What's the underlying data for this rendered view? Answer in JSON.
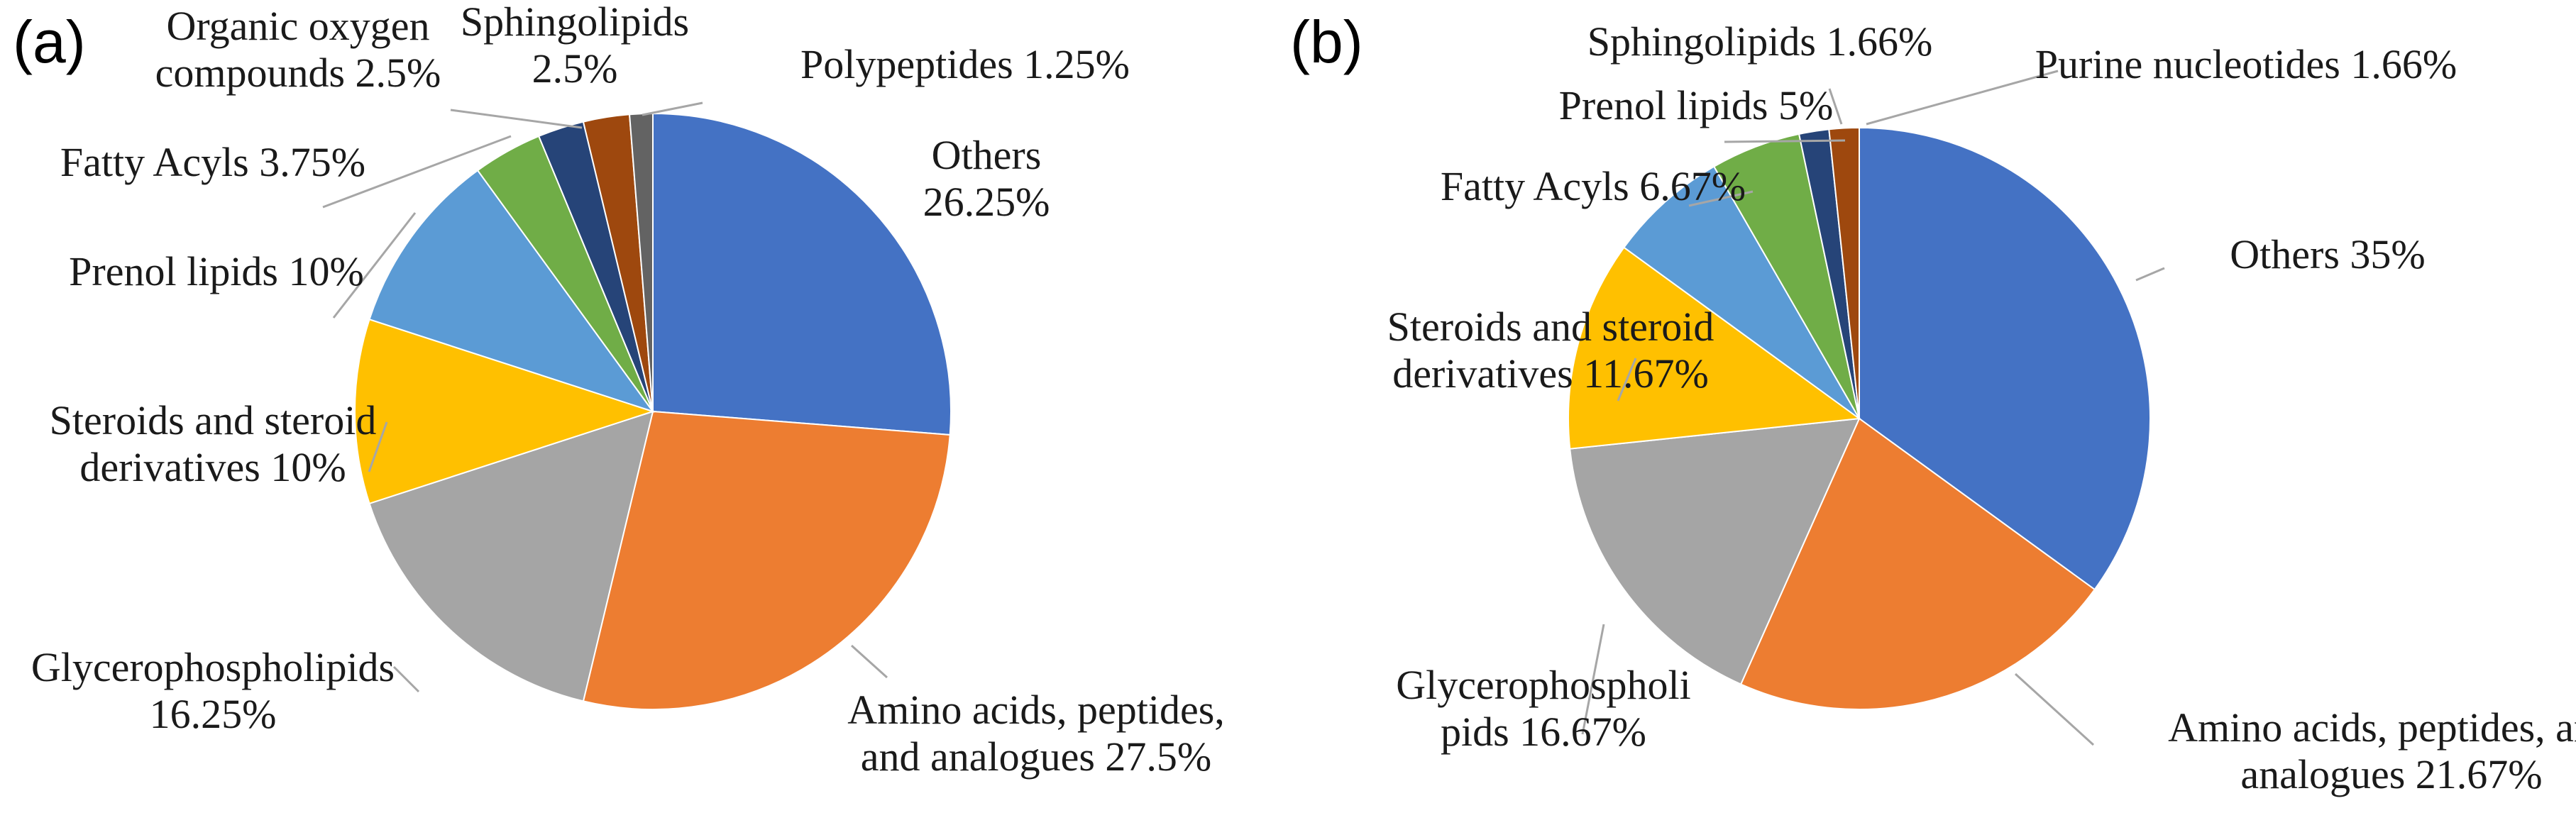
{
  "chart_data": [
    {
      "type": "pie",
      "panel_label": "(a)",
      "start_angle_deg": 0,
      "direction": "clockwise",
      "slices": [
        {
          "name": "Others",
          "value": 26.25,
          "label_lines": [
            "Others",
            "26.25%"
          ],
          "color": "#4472c4"
        },
        {
          "name": "Amino acids, peptides, and analogues",
          "value": 27.5,
          "label_lines": [
            "Amino acids, peptides,",
            "and analogues 27.5%"
          ],
          "color": "#ed7d31"
        },
        {
          "name": "Glycerophospholipids",
          "value": 16.25,
          "label_lines": [
            "Glycerophospholipids",
            "16.25%"
          ],
          "color": "#a5a5a5"
        },
        {
          "name": "Steroids and steroid derivatives",
          "value": 10,
          "label_lines": [
            "Steroids and steroid",
            "derivatives 10%"
          ],
          "color": "#ffc000"
        },
        {
          "name": "Prenol lipids",
          "value": 10,
          "label_lines": [
            "Prenol lipids 10%"
          ],
          "color": "#5b9bd5"
        },
        {
          "name": "Fatty Acyls",
          "value": 3.75,
          "label_lines": [
            "Fatty Acyls 3.75%"
          ],
          "color": "#70ad47"
        },
        {
          "name": "Organic oxygen compounds",
          "value": 2.5,
          "label_lines": [
            "Organic oxygen",
            "compounds 2.5%"
          ],
          "color": "#264478"
        },
        {
          "name": "Sphingolipids",
          "value": 2.5,
          "label_lines": [
            "Sphingolipids",
            "2.5%"
          ],
          "color": "#9e480e"
        },
        {
          "name": "Polypeptides",
          "value": 1.25,
          "label_lines": [
            "Polypeptides 1.25%"
          ],
          "color": "#636363"
        }
      ]
    },
    {
      "type": "pie",
      "panel_label": "(b)",
      "start_angle_deg": 0,
      "direction": "clockwise",
      "slices": [
        {
          "name": "Others",
          "value": 35,
          "label_lines": [
            "Others 35%"
          ],
          "color": "#4472c4"
        },
        {
          "name": "Amino acids, peptides, and analogues",
          "value": 21.67,
          "label_lines": [
            "Amino acids, peptides, and",
            "analogues 21.67%"
          ],
          "color": "#ed7d31"
        },
        {
          "name": "Glycerophospholipids",
          "value": 16.67,
          "label_lines": [
            "Glycerophospholi",
            "pids 16.67%"
          ],
          "color": "#a5a5a5"
        },
        {
          "name": "Steroids and steroid derivatives",
          "value": 11.67,
          "label_lines": [
            "Steroids and steroid",
            "derivatives 11.67%"
          ],
          "color": "#ffc000"
        },
        {
          "name": "Fatty Acyls",
          "value": 6.67,
          "label_lines": [
            "Fatty Acyls 6.67%"
          ],
          "color": "#5b9bd5"
        },
        {
          "name": "Prenol lipids",
          "value": 5,
          "label_lines": [
            "Prenol lipids 5%"
          ],
          "color": "#70ad47"
        },
        {
          "name": "Sphingolipids",
          "value": 1.66,
          "label_lines": [
            "Sphingolipids 1.66%"
          ],
          "color": "#264478"
        },
        {
          "name": "Purine nucleotides",
          "value": 1.66,
          "label_lines": [
            "Purine nucleotides 1.66%"
          ],
          "color": "#9e480e"
        }
      ]
    }
  ]
}
